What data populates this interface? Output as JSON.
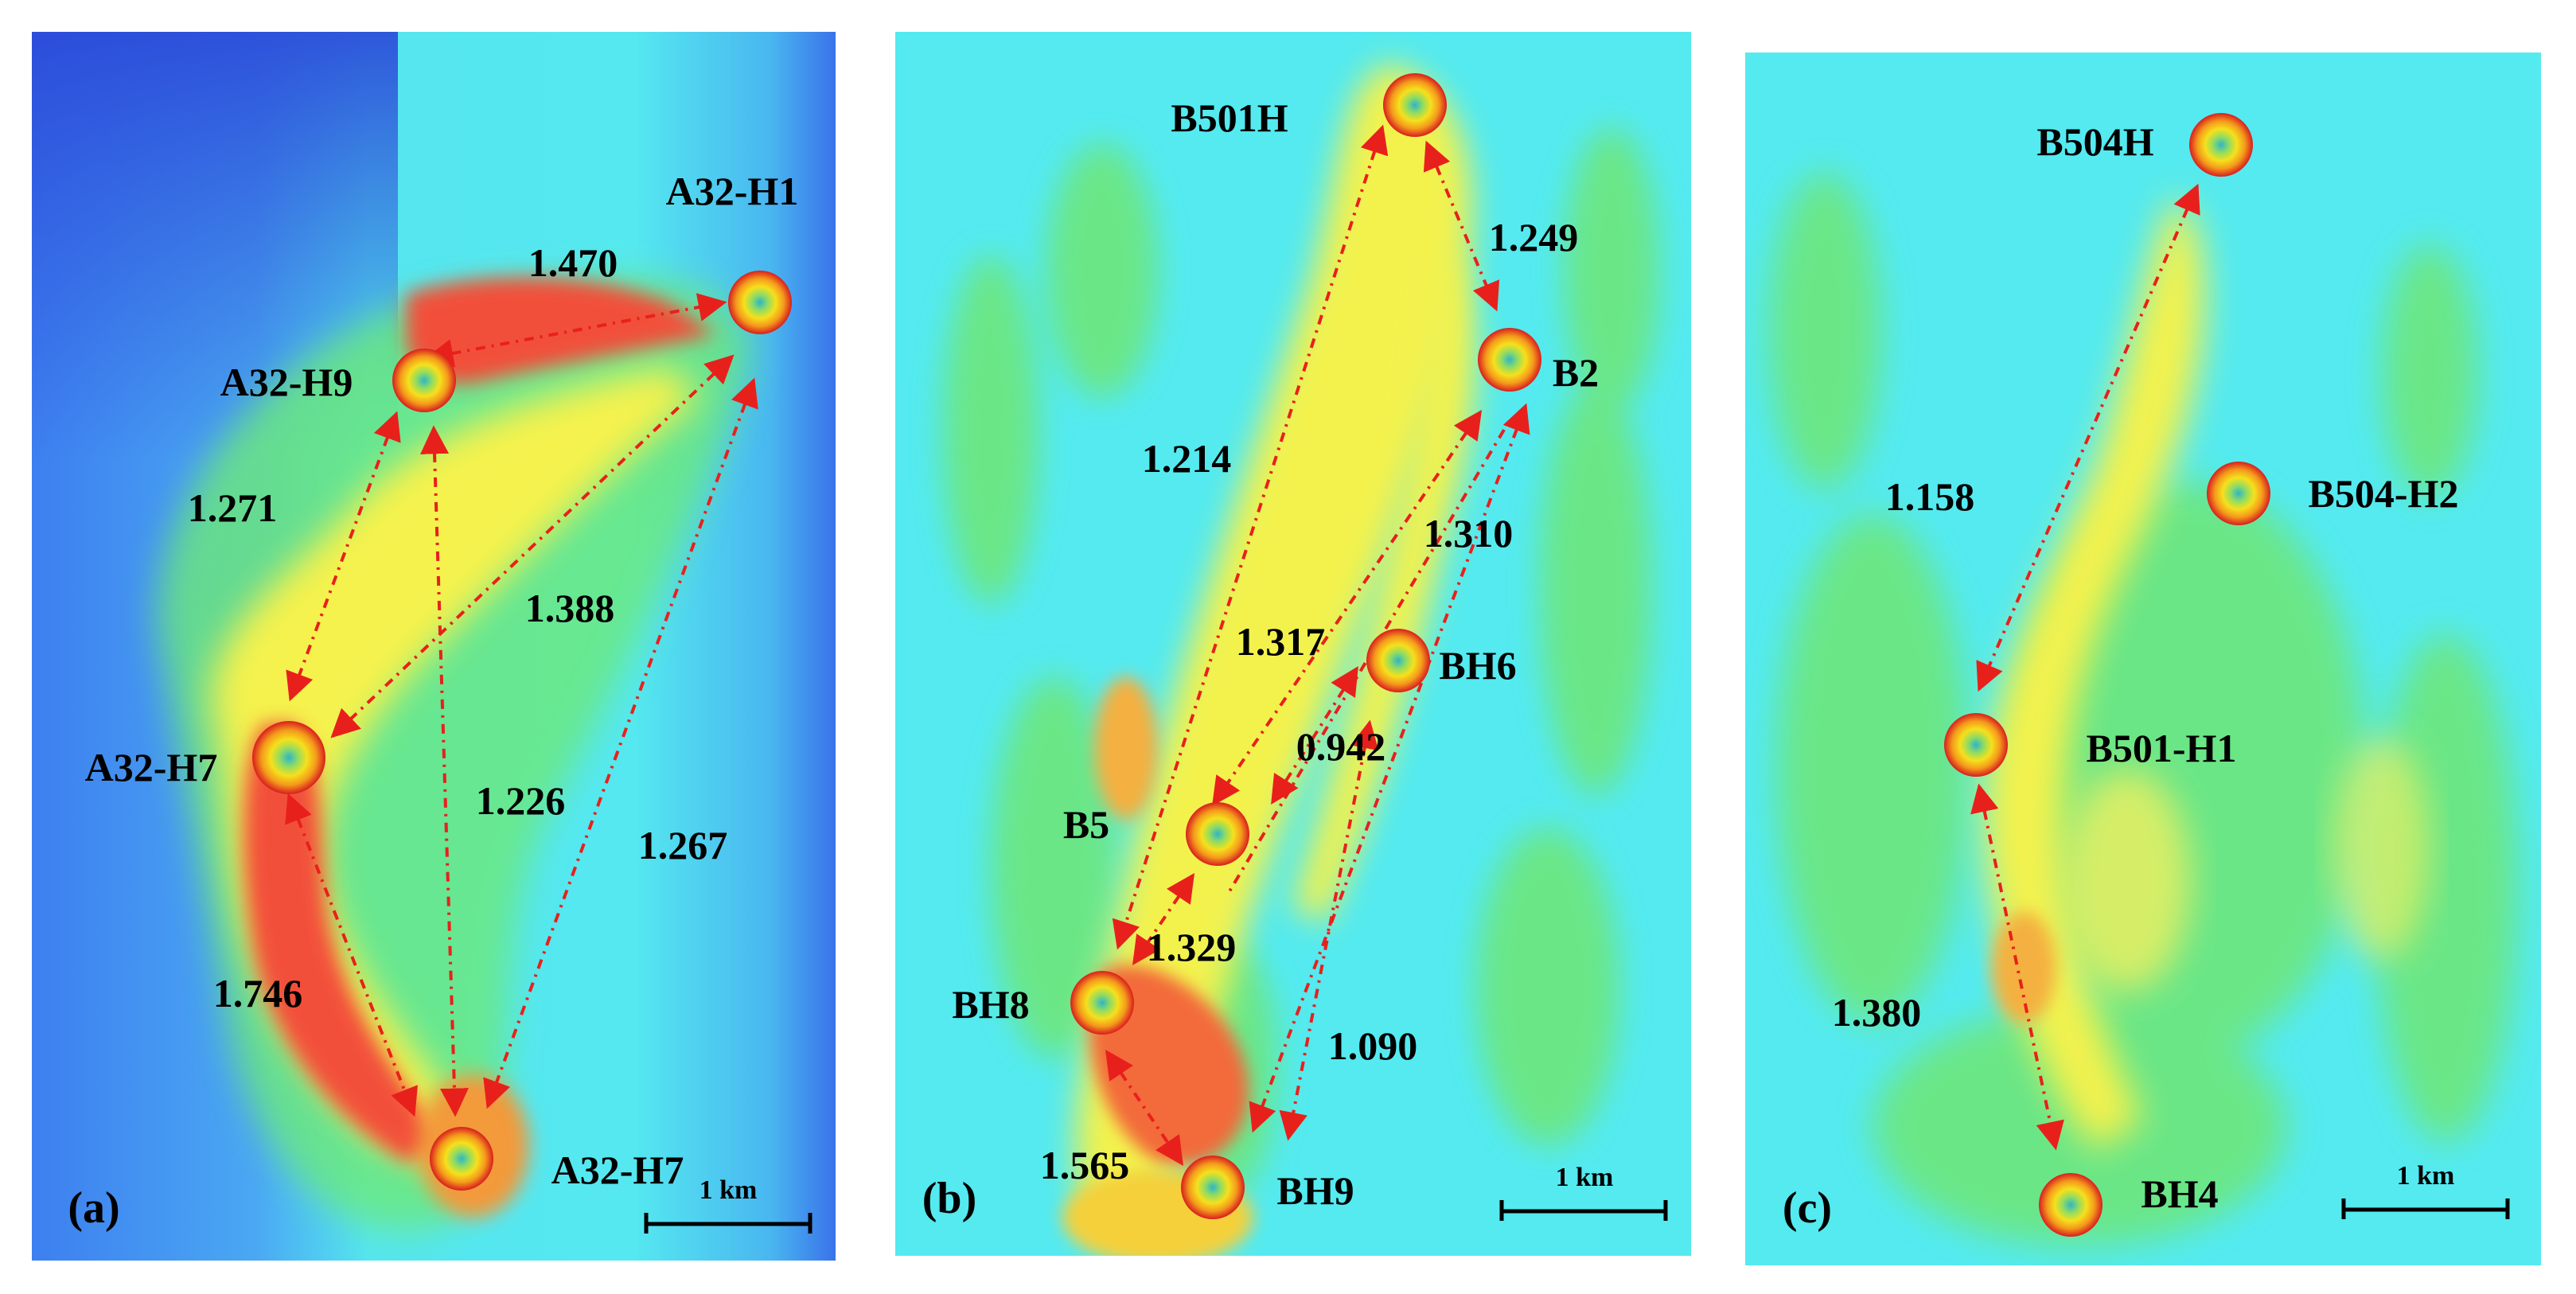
{
  "panels": [
    {
      "id": "a",
      "label": "(a)",
      "scale_bar": "1 km",
      "wells": [
        {
          "name": "A32-H1"
        },
        {
          "name": "A32-H9"
        },
        {
          "name": "A32-H7"
        },
        {
          "name": "A32-H7"
        }
      ],
      "distances": [
        "1.470",
        "1.271",
        "1.388",
        "1.226",
        "1.267",
        "1.746"
      ]
    },
    {
      "id": "b",
      "label": "(b)",
      "scale_bar": "1 km",
      "wells": [
        {
          "name": "B501H"
        },
        {
          "name": "B2"
        },
        {
          "name": "BH6"
        },
        {
          "name": "B5"
        },
        {
          "name": "BH8"
        },
        {
          "name": "BH9"
        }
      ],
      "distances": [
        "1.249",
        "1.214",
        "1.310",
        "1.317",
        "0.942",
        "1.329",
        "1.090",
        "1.565"
      ]
    },
    {
      "id": "c",
      "label": "(c)",
      "scale_bar": "1 km",
      "wells": [
        {
          "name": "B504H"
        },
        {
          "name": "B504-H2"
        },
        {
          "name": "B501-H1"
        },
        {
          "name": "BH4"
        }
      ],
      "distances": [
        "1.158",
        "1.380"
      ]
    }
  ],
  "colors": {
    "arrow": "#e8201c",
    "well_outer": "#d81e1e",
    "well_mid": "#f6c21c",
    "well_inner": "#2fb5c8",
    "low": "#2f5fe0",
    "mid": "#4ff0f2",
    "green": "#67e87a",
    "high_yellow": "#f3f54d",
    "high_red": "#f2503a"
  }
}
